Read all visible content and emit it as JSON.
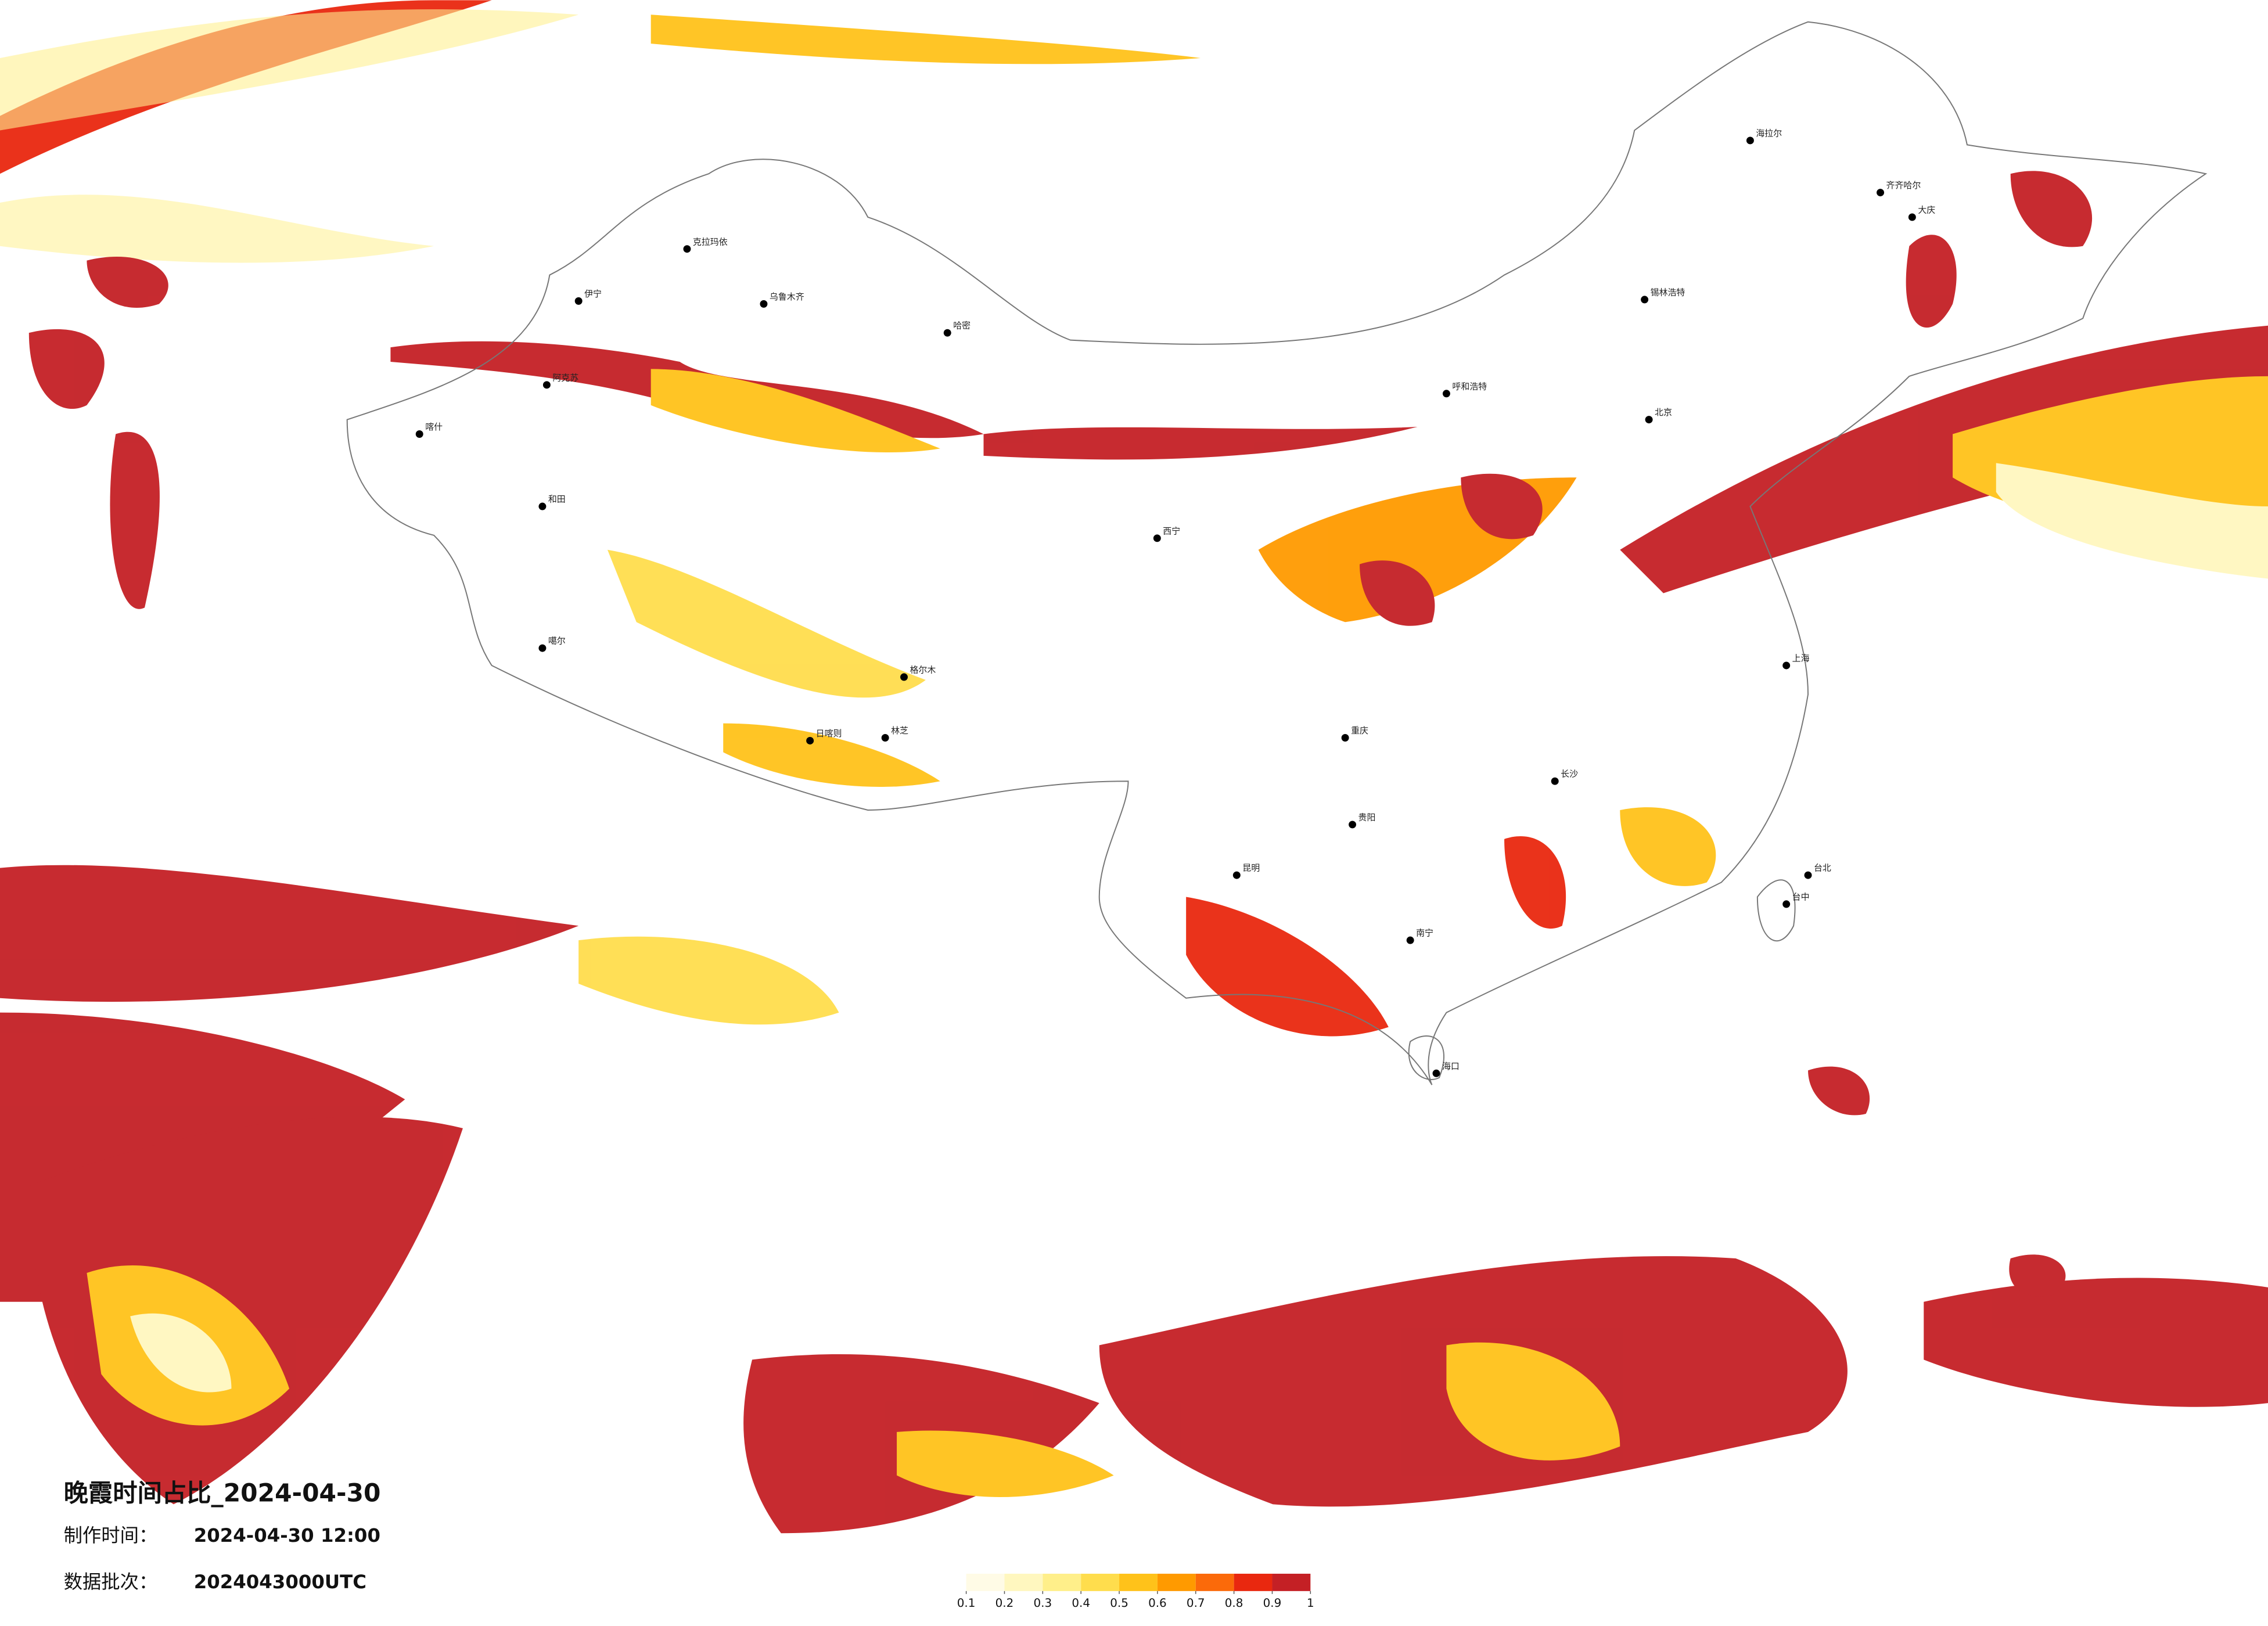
{
  "map": {
    "title": "晚霞时间占比_2024-04-30",
    "made_label": "制作时间：",
    "made_time": "2024-04-30 12:00",
    "batch_label": "数据批次：",
    "batch": "2024043000UTC",
    "colorbar": {
      "ticks": [
        0.1,
        0.2,
        0.3,
        0.4,
        0.5,
        0.6,
        0.7,
        0.8,
        0.9,
        1
      ],
      "colors": [
        "#fffbe6",
        "#fff7bf",
        "#ffef8a",
        "#ffdd4d",
        "#ffc21a",
        "#ff9a00",
        "#fb6a0a",
        "#e9280f",
        "#c42025"
      ]
    },
    "cities": [
      "克拉玛依",
      "伊宁",
      "乌鲁木齐",
      "哈密",
      "阿克苏",
      "喀什",
      "和田",
      "噶尔",
      "日喀则",
      "林芝",
      "格尔木",
      "西宁",
      "锡林浩特",
      "海拉尔",
      "齐齐哈尔",
      "大庆",
      "北京",
      "呼和浩特",
      "重庆",
      "贵阳",
      "昆明",
      "南宁",
      "海口",
      "长沙",
      "台中",
      "台北",
      "上海"
    ]
  }
}
